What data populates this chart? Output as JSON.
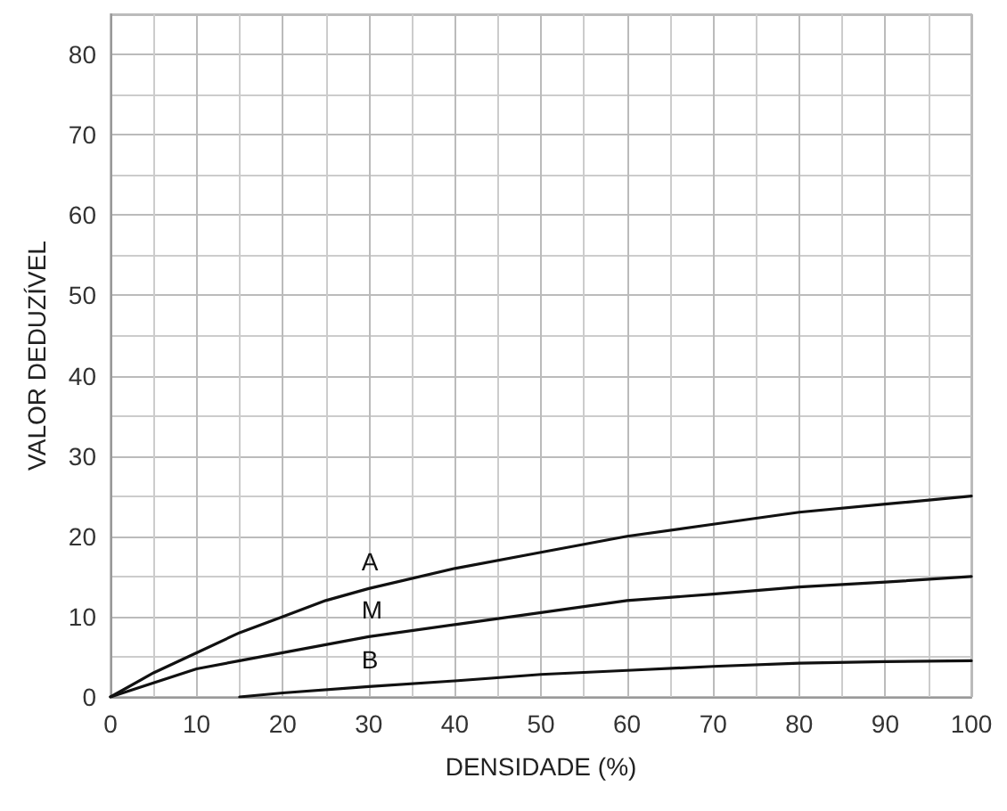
{
  "chart_data": {
    "type": "line",
    "xlabel": "DENSIDADE (%)",
    "ylabel": "VALOR DEDUZÍVEL",
    "xlim": [
      0,
      100
    ],
    "ylim": [
      0,
      85
    ],
    "xticks": [
      0,
      10,
      20,
      30,
      40,
      50,
      60,
      70,
      80,
      90,
      100
    ],
    "yticks": [
      0,
      10,
      20,
      30,
      40,
      50,
      60,
      70,
      80
    ],
    "grid": true,
    "marker": "none",
    "line_style": "solid",
    "legend": false,
    "series": [
      {
        "name": "A",
        "color": "#111111",
        "x": [
          0,
          5,
          10,
          15,
          20,
          25,
          30,
          40,
          50,
          60,
          70,
          80,
          90,
          100
        ],
        "values": [
          0,
          3,
          5.5,
          8,
          10,
          12,
          13.5,
          16,
          18,
          20,
          21.5,
          23,
          24,
          25
        ]
      },
      {
        "name": "M",
        "color": "#111111",
        "x": [
          0,
          10,
          15,
          20,
          30,
          40,
          50,
          60,
          70,
          80,
          90,
          100
        ],
        "values": [
          0,
          3.5,
          4.5,
          5.5,
          7.5,
          9,
          10.5,
          12,
          12.8,
          13.7,
          14.3,
          15
        ]
      },
      {
        "name": "B",
        "color": "#111111",
        "x": [
          15,
          20,
          30,
          40,
          50,
          60,
          70,
          80,
          90,
          100
        ],
        "values": [
          0,
          0.5,
          1.3,
          2,
          2.8,
          3.3,
          3.8,
          4.2,
          4.4,
          4.5
        ]
      }
    ]
  }
}
